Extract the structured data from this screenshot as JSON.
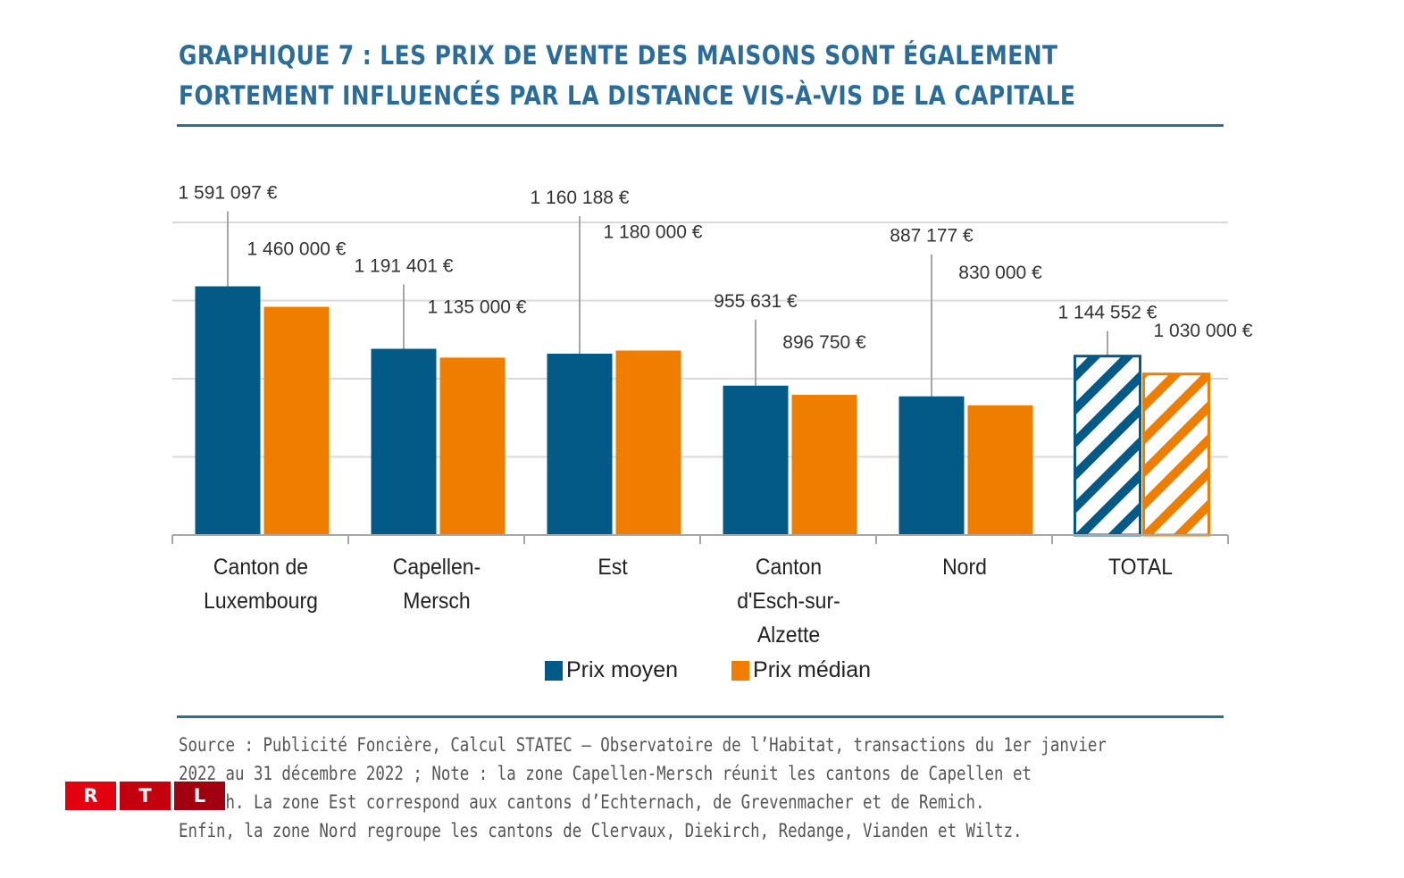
{
  "header": {
    "title_line1": "GRAPHIQUE 7 : LES PRIX DE VENTE DES MAISONS SONT ÉGALEMENT",
    "title_line2": "FORTEMENT INFLUENCÉS PAR LA DISTANCE VIS-À-VIS DE LA CAPITALE"
  },
  "colors": {
    "title": "#2a6d9a",
    "mean": "#045a86",
    "median": "#ef7d00",
    "grid": "#d9d9d9",
    "axis": "#a6a6a6",
    "rule": "#2f6e93"
  },
  "chart_data": {
    "type": "bar",
    "title": "Graphique 7 : Les prix de vente des maisons sont également fortement influencés par la distance vis-à-vis de la capitale",
    "xlabel": "",
    "ylabel": "",
    "ylim": [
      0,
      2000000
    ],
    "grid": true,
    "gridline_step": 500000,
    "y_tick_labels_shown": false,
    "legend_position": "bottom",
    "categories": [
      "Canton de Luxembourg",
      "Capellen-Mersch",
      "Est",
      "Canton d'Esch-sur-Alzette",
      "Nord",
      "TOTAL"
    ],
    "category_label_lines": [
      [
        "Canton de",
        "Luxembourg"
      ],
      [
        "Capellen-",
        "Mersch"
      ],
      [
        "Est"
      ],
      [
        "Canton",
        "d'Esch-sur-",
        "Alzette"
      ],
      [
        "Nord"
      ],
      [
        "TOTAL"
      ]
    ],
    "hatched_categories": [
      "TOTAL"
    ],
    "series": [
      {
        "name": "Prix moyen",
        "color": "#045a86",
        "values": [
          1591097,
          1191401,
          1160188,
          955631,
          887177,
          1144552
        ],
        "labels": [
          "1 591 097 €",
          "1 191 401 €",
          "1 160 188 €",
          "955 631 €",
          "887 177 €",
          "1 144 552 €"
        ]
      },
      {
        "name": "Prix médian",
        "color": "#ef7d00",
        "values": [
          1460000,
          1135000,
          1180000,
          896750,
          830000,
          1030000
        ],
        "labels": [
          "1 460 000 €",
          "1 135 000 €",
          "1 180 000 €",
          "896 750 €",
          "830 000 €",
          "1 030 000 €"
        ]
      }
    ]
  },
  "legend": {
    "mean_label": "Prix moyen",
    "median_label": "Prix médian"
  },
  "footer": {
    "note_lines": [
      "Source : Publicité Foncière, Calcul STATEC – Observatoire de l’Habitat, transactions du 1er janvier",
      "2022 au 31 décembre 2022 ; Note : la zone Capellen-Mersch réunit les cantons de Capellen et",
      "Mersch. La zone Est correspond aux cantons d’Echternach, de Grevenmacher et de Remich.",
      "Enfin, la zone Nord regroupe les cantons de Clervaux, Diekirch, Redange, Vianden et Wiltz."
    ]
  },
  "logo": {
    "letters": [
      "R",
      "T",
      "L"
    ],
    "colors": [
      "#e3000f",
      "#c4000e",
      "#a00010"
    ]
  }
}
